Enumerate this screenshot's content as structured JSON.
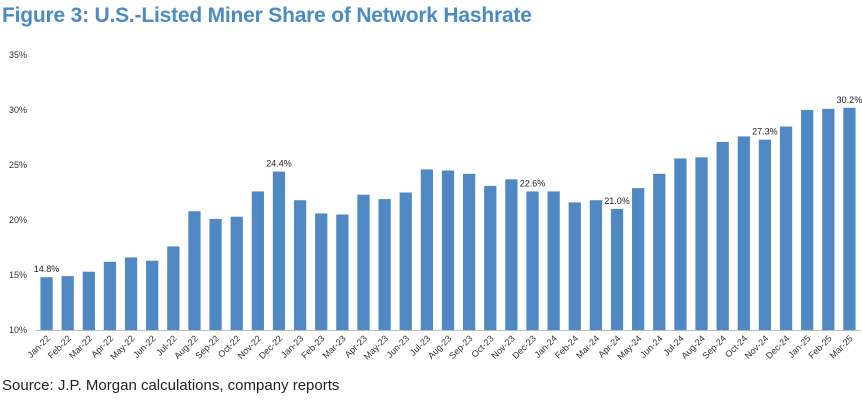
{
  "figure": {
    "title": "Figure 3: U.S.-Listed Miner Share of Network Hashrate",
    "source": "Source: J.P. Morgan calculations, company reports"
  },
  "colors": {
    "bar": "#4f88c2",
    "title": "#4a8bc4",
    "axis": "#bdbdbd"
  },
  "chart_data": {
    "type": "bar",
    "title": "U.S.-Listed Miner Share of Network Hashrate",
    "xlabel": "",
    "ylabel": "",
    "ylim": [
      10,
      35
    ],
    "y_ticks": [
      10,
      15,
      20,
      25,
      30,
      35
    ],
    "y_tick_labels": [
      "10%",
      "15%",
      "20%",
      "25%",
      "30%",
      "35%"
    ],
    "grid": false,
    "categories": [
      "Jan-22",
      "Feb-22",
      "Mar-22",
      "Apr-22",
      "May-22",
      "Jun-22",
      "Jul-22",
      "Aug-22",
      "Sep-22",
      "Oct-22",
      "Nov-22",
      "Dec-22",
      "Jan-23",
      "Feb-23",
      "Mar-23",
      "Apr-23",
      "May-23",
      "Jun-23",
      "Jul-23",
      "Aug-23",
      "Sep-23",
      "Oct-23",
      "Nov-23",
      "Dec-23",
      "Jan-24",
      "Feb-24",
      "Mar-24",
      "Apr-24",
      "May-24",
      "Jun-24",
      "Jul-24",
      "Aug-24",
      "Sep-24",
      "Oct-24",
      "Nov-24",
      "Dec-24",
      "Jan-25",
      "Feb-25",
      "Mar-25"
    ],
    "values": [
      14.8,
      14.9,
      15.3,
      16.2,
      16.6,
      16.3,
      17.6,
      20.8,
      20.1,
      20.3,
      22.6,
      24.4,
      21.8,
      20.6,
      20.5,
      22.3,
      21.9,
      22.5,
      24.6,
      24.5,
      24.2,
      23.1,
      23.7,
      22.6,
      22.6,
      21.6,
      21.8,
      21.0,
      22.9,
      24.2,
      25.6,
      25.7,
      27.1,
      27.6,
      27.3,
      28.5,
      30.0,
      30.1,
      30.2
    ],
    "data_labels": [
      {
        "index": 0,
        "text": "14.8%"
      },
      {
        "index": 11,
        "text": "24.4%"
      },
      {
        "index": 23,
        "text": "22.6%"
      },
      {
        "index": 27,
        "text": "21.0%"
      },
      {
        "index": 34,
        "text": "27.3%"
      },
      {
        "index": 38,
        "text": "30.2%"
      }
    ]
  }
}
